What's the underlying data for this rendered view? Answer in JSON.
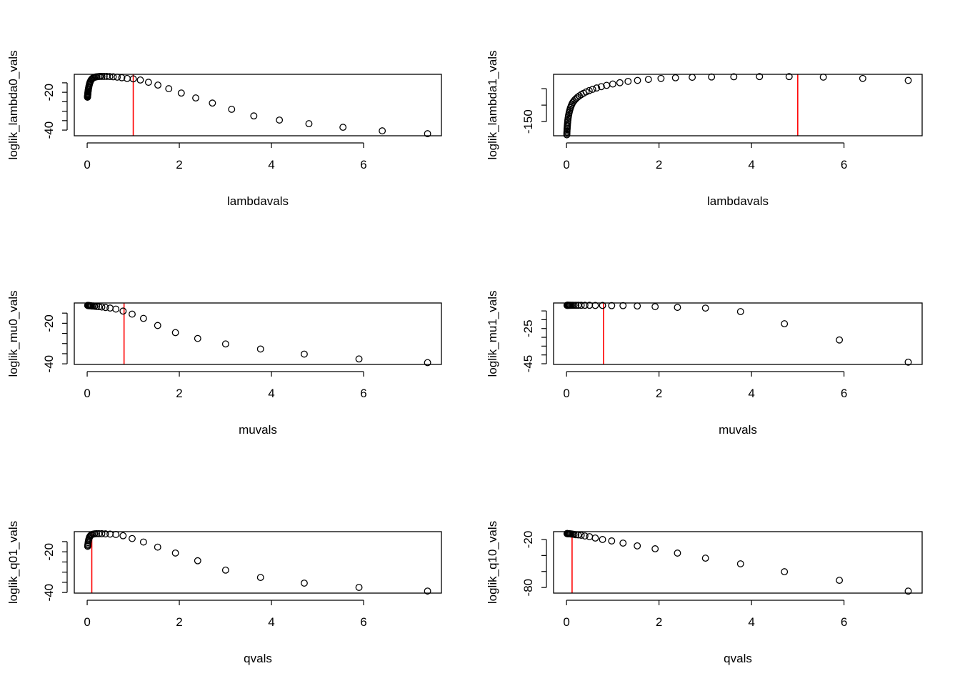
{
  "chart_data": [
    {
      "type": "scatter",
      "xlabel": "lambdavals",
      "ylabel": "loglik_lambda0_vals",
      "xlim": [
        -0.28,
        7.69
      ],
      "ylim": [
        -43,
        -10.5
      ],
      "xticks": [
        0,
        2,
        4,
        6
      ],
      "xtick_labels": [
        "0",
        "2",
        "4",
        "6"
      ],
      "yticks": [
        -15,
        -20,
        -25,
        -30,
        -35,
        -40
      ],
      "ytick_labels": [
        "",
        "-20",
        "",
        "",
        "",
        "-40"
      ],
      "vline": 1.0,
      "x": [
        0.0067,
        0.0078,
        0.0089,
        0.0103,
        0.0119,
        0.0137,
        0.0159,
        0.0183,
        0.0211,
        0.0244,
        0.0282,
        0.0325,
        0.0374,
        0.0432,
        0.0498,
        0.0574,
        0.0663,
        0.0765,
        0.0882,
        0.1018,
        0.1174,
        0.1353,
        0.1561,
        0.1801,
        0.2077,
        0.2397,
        0.2765,
        0.3189,
        0.3679,
        0.4244,
        0.4895,
        0.5647,
        0.6514,
        0.7515,
        0.8669,
        1.0,
        1.1536,
        1.3307,
        1.535,
        1.7708,
        2.0427,
        2.3564,
        2.7183,
        3.1357,
        3.6173,
        4.1727,
        4.8135,
        5.5527,
        6.4054,
        7.3891
      ],
      "y": [
        -22.6,
        -22.3,
        -22,
        -21.6,
        -21.2,
        -20.8,
        -20.3,
        -19.8,
        -19.3,
        -18.7,
        -18.1,
        -17.5,
        -16.9,
        -16.2,
        -15.6,
        -15,
        -14.4,
        -13.9,
        -13.4,
        -13,
        -12.6,
        -12.3,
        -12.1,
        -11.9,
        -11.8,
        -11.7,
        -11.6,
        -11.6,
        -11.6,
        -11.6,
        -11.7,
        -11.8,
        -12,
        -12.3,
        -12.7,
        -12.9,
        -13.5,
        -14.7,
        -16.2,
        -18.1,
        -20.4,
        -23,
        -25.7,
        -29,
        -32.5,
        -34.7,
        -36.6,
        -38.5,
        -40.4,
        -41.9
      ]
    },
    {
      "type": "scatter",
      "xlabel": "lambdavals",
      "ylabel": "loglik_lambda1_vals",
      "xlim": [
        -0.28,
        7.69
      ],
      "ylim": [
        -193,
        -6.5
      ],
      "xticks": [
        0,
        2,
        4,
        6
      ],
      "xtick_labels": [
        "0",
        "2",
        "4",
        "6"
      ],
      "yticks": [
        -50,
        -100,
        -150
      ],
      "ytick_labels": [
        "",
        "",
        "-150"
      ],
      "vline": 5.0,
      "x": [
        0.0067,
        0.0078,
        0.0089,
        0.0103,
        0.0119,
        0.0137,
        0.0159,
        0.0183,
        0.0211,
        0.0244,
        0.0282,
        0.0325,
        0.0374,
        0.0432,
        0.0498,
        0.0574,
        0.0663,
        0.0765,
        0.0882,
        0.1018,
        0.1174,
        0.1353,
        0.1561,
        0.1801,
        0.2077,
        0.2397,
        0.2765,
        0.3189,
        0.3679,
        0.4244,
        0.4895,
        0.5647,
        0.6514,
        0.7515,
        0.8669,
        1.0,
        1.1536,
        1.3307,
        1.535,
        1.7708,
        2.0427,
        2.3564,
        2.7183,
        3.1357,
        3.6173,
        4.1727,
        4.8135,
        5.5527,
        6.4054,
        7.3891
      ],
      "y": [
        -190,
        -186,
        -182,
        -178,
        -174,
        -170,
        -166,
        -162,
        -157,
        -152,
        -147,
        -142,
        -137,
        -132,
        -127,
        -122,
        -117,
        -112,
        -107,
        -102,
        -97,
        -92,
        -88,
        -84,
        -80,
        -76,
        -72,
        -68,
        -64,
        -60,
        -56,
        -52,
        -48,
        -44,
        -40,
        -36,
        -32,
        -28,
        -25,
        -22,
        -19,
        -17,
        -15.5,
        -14.5,
        -14,
        -13.5,
        -13.5,
        -15,
        -19,
        -25
      ]
    },
    {
      "type": "scatter",
      "xlabel": "muvals",
      "ylabel": "loglik_mu0_vals",
      "xlim": [
        -0.28,
        7.69
      ],
      "ylim": [
        -40.3,
        -10
      ],
      "xticks": [
        0,
        2,
        4,
        6
      ],
      "xtick_labels": [
        "0",
        "2",
        "4",
        "6"
      ],
      "yticks": [
        -15,
        -20,
        -25,
        -30,
        -35,
        -40
      ],
      "ytick_labels": [
        "",
        "-20",
        "",
        "",
        "",
        "-40"
      ],
      "vline": 0.8,
      "x": [
        0.011,
        0.014,
        0.017,
        0.021,
        0.027,
        0.033,
        0.042,
        0.052,
        0.066,
        0.082,
        0.103,
        0.129,
        0.161,
        0.202,
        0.253,
        0.317,
        0.397,
        0.497,
        0.622,
        0.779,
        0.976,
        1.222,
        1.53,
        1.916,
        2.399,
        3.005,
        3.763,
        4.712,
        5.9,
        7.389
      ],
      "y": [
        -11.2,
        -11.2,
        -11.2,
        -11.2,
        -11.3,
        -11.3,
        -11.3,
        -11.3,
        -11.4,
        -11.4,
        -11.5,
        -11.5,
        -11.6,
        -11.7,
        -11.8,
        -12,
        -12.2,
        -12.5,
        -13,
        -14,
        -15.5,
        -17.6,
        -21.1,
        -24.6,
        -27.5,
        -30.2,
        -32.7,
        -35.2,
        -37.6,
        -39.4
      ]
    },
    {
      "type": "scatter",
      "xlabel": "muvals",
      "ylabel": "loglik_mu1_vals",
      "xlim": [
        -0.28,
        7.69
      ],
      "ylim": [
        -45.4,
        -10.5
      ],
      "xticks": [
        0,
        2,
        4,
        6
      ],
      "xtick_labels": [
        "0",
        "2",
        "4",
        "6"
      ],
      "yticks": [
        -15,
        -20,
        -25,
        -30,
        -35,
        -40,
        -45
      ],
      "ytick_labels": [
        "",
        "",
        "-25",
        "",
        "",
        "",
        "-45"
      ],
      "vline": 0.8,
      "x": [
        0.011,
        0.014,
        0.017,
        0.021,
        0.027,
        0.033,
        0.042,
        0.052,
        0.066,
        0.082,
        0.103,
        0.129,
        0.161,
        0.202,
        0.253,
        0.317,
        0.397,
        0.497,
        0.622,
        0.779,
        0.976,
        1.222,
        1.53,
        1.916,
        2.399,
        3.005,
        3.763,
        4.712,
        5.9,
        7.389
      ],
      "y": [
        -11.8,
        -11.8,
        -11.8,
        -11.8,
        -11.8,
        -11.8,
        -11.8,
        -11.8,
        -11.8,
        -11.8,
        -11.8,
        -11.8,
        -11.8,
        -11.8,
        -11.8,
        -11.8,
        -11.8,
        -11.8,
        -11.9,
        -11.9,
        -12,
        -12,
        -12.2,
        -12.6,
        -13,
        -13.4,
        -15.4,
        -22.3,
        -31.5,
        -44.1
      ]
    },
    {
      "type": "scatter",
      "xlabel": "qvals",
      "ylabel": "loglik_q01_vals",
      "xlim": [
        -0.28,
        7.69
      ],
      "ylim": [
        -40.3,
        -10.1
      ],
      "xticks": [
        0,
        2,
        4,
        6
      ],
      "xtick_labels": [
        "0",
        "2",
        "4",
        "6"
      ],
      "yticks": [
        -15,
        -20,
        -25,
        -30,
        -35,
        -40
      ],
      "ytick_labels": [
        "",
        "-20",
        "",
        "",
        "",
        "-40"
      ],
      "vline": 0.1,
      "x": [
        0.011,
        0.014,
        0.017,
        0.021,
        0.027,
        0.033,
        0.042,
        0.052,
        0.066,
        0.082,
        0.103,
        0.129,
        0.161,
        0.202,
        0.253,
        0.317,
        0.397,
        0.497,
        0.622,
        0.779,
        0.976,
        1.222,
        1.53,
        1.916,
        2.399,
        3.005,
        3.763,
        4.712,
        5.9,
        7.389
      ],
      "y": [
        -17.3,
        -16.8,
        -16.2,
        -15.5,
        -14.7,
        -14,
        -13.3,
        -12.7,
        -12.2,
        -11.8,
        -11.5,
        -11.3,
        -11.2,
        -11.1,
        -11.1,
        -11.1,
        -11.2,
        -11.3,
        -11.5,
        -12.1,
        -13.5,
        -15.2,
        -17.7,
        -20.6,
        -24.4,
        -29,
        -32.6,
        -35.4,
        -37.5,
        -39.3
      ]
    },
    {
      "type": "scatter",
      "xlabel": "qvals",
      "ylabel": "loglik_q10_vals",
      "xlim": [
        -0.28,
        7.69
      ],
      "ylim": [
        -87,
        -10.2
      ],
      "xticks": [
        0,
        2,
        4,
        6
      ],
      "xtick_labels": [
        "0",
        "2",
        "4",
        "6"
      ],
      "yticks": [
        -20,
        -40,
        -60,
        -80
      ],
      "ytick_labels": [
        "-20",
        "",
        "",
        "-80"
      ],
      "vline": 0.12,
      "x": [
        0.011,
        0.014,
        0.017,
        0.021,
        0.027,
        0.033,
        0.042,
        0.052,
        0.066,
        0.082,
        0.103,
        0.129,
        0.161,
        0.202,
        0.253,
        0.317,
        0.397,
        0.497,
        0.622,
        0.779,
        0.976,
        1.222,
        1.53,
        1.916,
        2.399,
        3.005,
        3.763,
        4.712,
        5.9,
        7.389
      ],
      "y": [
        -12.6,
        -12.6,
        -12.6,
        -12.6,
        -12.7,
        -12.7,
        -12.8,
        -12.8,
        -12.9,
        -13,
        -13.1,
        -13.3,
        -13.6,
        -14,
        -14.3,
        -14.7,
        -15.6,
        -16.5,
        -18.2,
        -20,
        -21.8,
        -24.5,
        -28,
        -31.6,
        -37,
        -43.3,
        -50.4,
        -60.3,
        -71,
        -84.5
      ]
    }
  ],
  "colors": {
    "points": "#000000",
    "vline": "#ff0000",
    "axes": "#000000"
  }
}
